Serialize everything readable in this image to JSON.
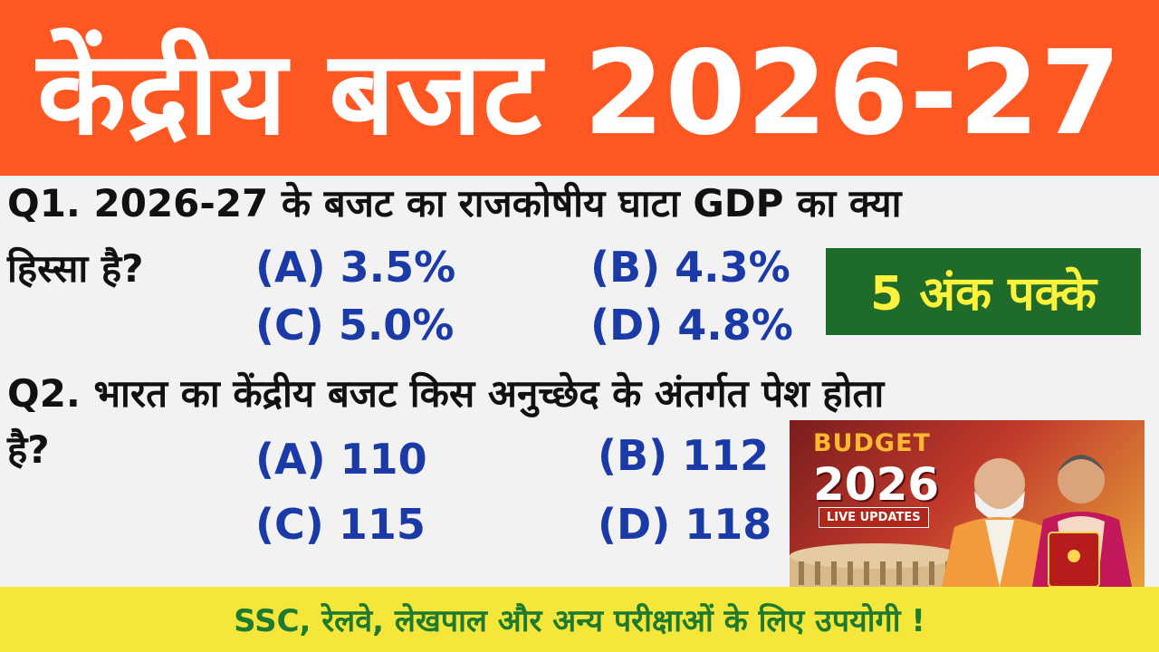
{
  "banner": {
    "title": "केंद्रीय बजट 2026-27"
  },
  "q1": {
    "line1": "Q1. 2026-27 के बजट का राजकोषीय घाटा GDP का क्या",
    "line2": "हिस्सा है?",
    "options": {
      "a": "(A) 3.5%",
      "b": "(B) 4.3%",
      "c": "(C) 5.0%",
      "d": "(D) 4.8%"
    }
  },
  "badge": {
    "text": "5 अंक पक्के"
  },
  "q2": {
    "line1": "Q2. भारत का केंद्रीय बजट किस अनुच्छेद के अंतर्गत पेश होता",
    "line2": "है?",
    "options": {
      "a": "(A) 110",
      "b": "(B) 112",
      "c": "(C) 115",
      "d": "(D) 118"
    }
  },
  "thumbnail": {
    "heading": "BUDGET",
    "year": "2026",
    "tag": "LIVE UPDATES"
  },
  "footer": {
    "text": "SSC, रेलवे, लेखपाल और अन्य परीक्षाओं के लिए उपयोगी !"
  },
  "colors": {
    "banner": "#ff5722",
    "question": "#111111",
    "option": "#1a3aa8",
    "badge_bg": "#1e6b2a",
    "badge_text": "#fff23a",
    "footer_bg": "#f5e63a",
    "footer_text": "#1e7a2e"
  }
}
